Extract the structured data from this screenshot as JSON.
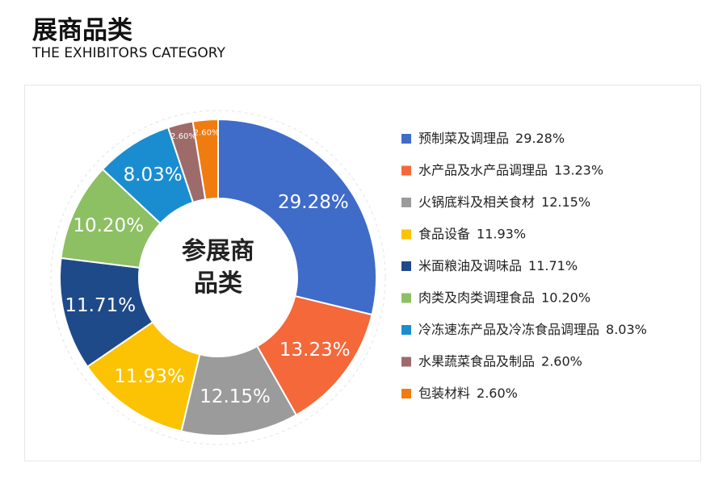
{
  "chart_data": {
    "type": "pie",
    "title": "展商品类",
    "subtitle": "THE EXHIBITORS CATEGORY",
    "center_label": "参展商品类",
    "categories": [
      "预制菜及调理品",
      "水产品及水产品调理品",
      "火锅底料及相关食材",
      "食品设备",
      "米面粮油及调味品",
      "肉类及肉类调理食品",
      "冷冻速冻产品及冷冻食品调理品",
      "水果蔬菜食品及制品",
      "包装材料"
    ],
    "values": [
      29.28,
      13.23,
      12.15,
      11.93,
      11.71,
      10.2,
      8.03,
      2.6,
      2.6
    ],
    "value_labels": [
      "29.28%",
      "13.23%",
      "12.15%",
      "11.93%",
      "11.71%",
      "10.20%",
      "8.03%",
      "2.60%",
      "2.60%"
    ],
    "colors": [
      "#3f6bc9",
      "#f4683a",
      "#9b9b9b",
      "#fcc204",
      "#1f4a8a",
      "#8cc063",
      "#1a8dd0",
      "#9e6b6b",
      "#f07c10"
    ]
  }
}
